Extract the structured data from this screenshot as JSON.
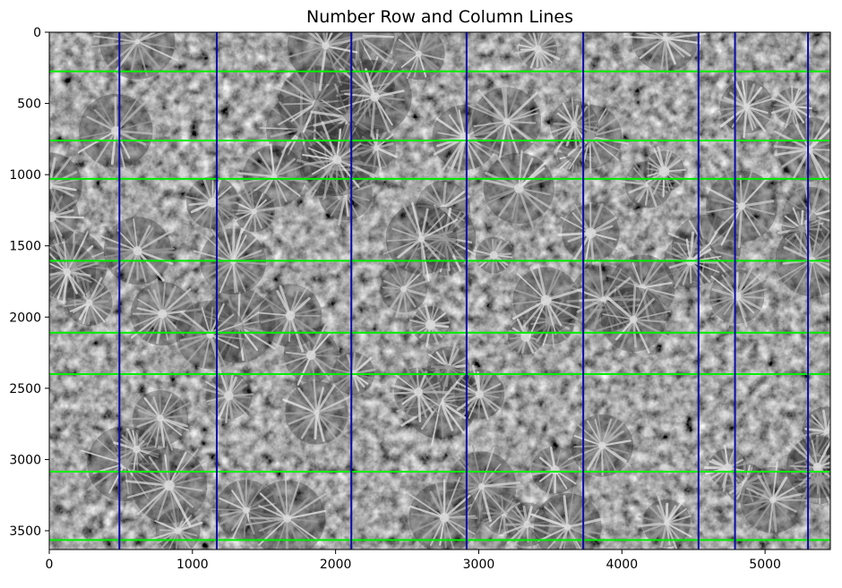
{
  "title": "Number Row and Column Lines",
  "image": {
    "description_name": "aerial-grayscale-palm-plantation",
    "x_range": [
      0,
      5456
    ],
    "y_range": [
      3632,
      0
    ]
  },
  "axes": {
    "x_ticks": [
      {
        "value": 0,
        "label": "0"
      },
      {
        "value": 1000,
        "label": "1000"
      },
      {
        "value": 2000,
        "label": "2000"
      },
      {
        "value": 3000,
        "label": "3000"
      },
      {
        "value": 4000,
        "label": "4000"
      },
      {
        "value": 5000,
        "label": "5000"
      }
    ],
    "y_ticks": [
      {
        "value": 0,
        "label": "0"
      },
      {
        "value": 500,
        "label": "500"
      },
      {
        "value": 1000,
        "label": "1000"
      },
      {
        "value": 1500,
        "label": "1500"
      },
      {
        "value": 2000,
        "label": "2000"
      },
      {
        "value": 2500,
        "label": "2500"
      },
      {
        "value": 3000,
        "label": "3000"
      },
      {
        "value": 3500,
        "label": "3500"
      }
    ]
  },
  "row_lines": {
    "color": "#00ee00",
    "y_values": [
      275,
      760,
      1030,
      1605,
      2110,
      2400,
      3085,
      3565
    ]
  },
  "column_lines": {
    "color": "#0a0aa8",
    "x_values": [
      490,
      1170,
      2110,
      2915,
      3730,
      4535,
      4790,
      5300
    ]
  }
}
